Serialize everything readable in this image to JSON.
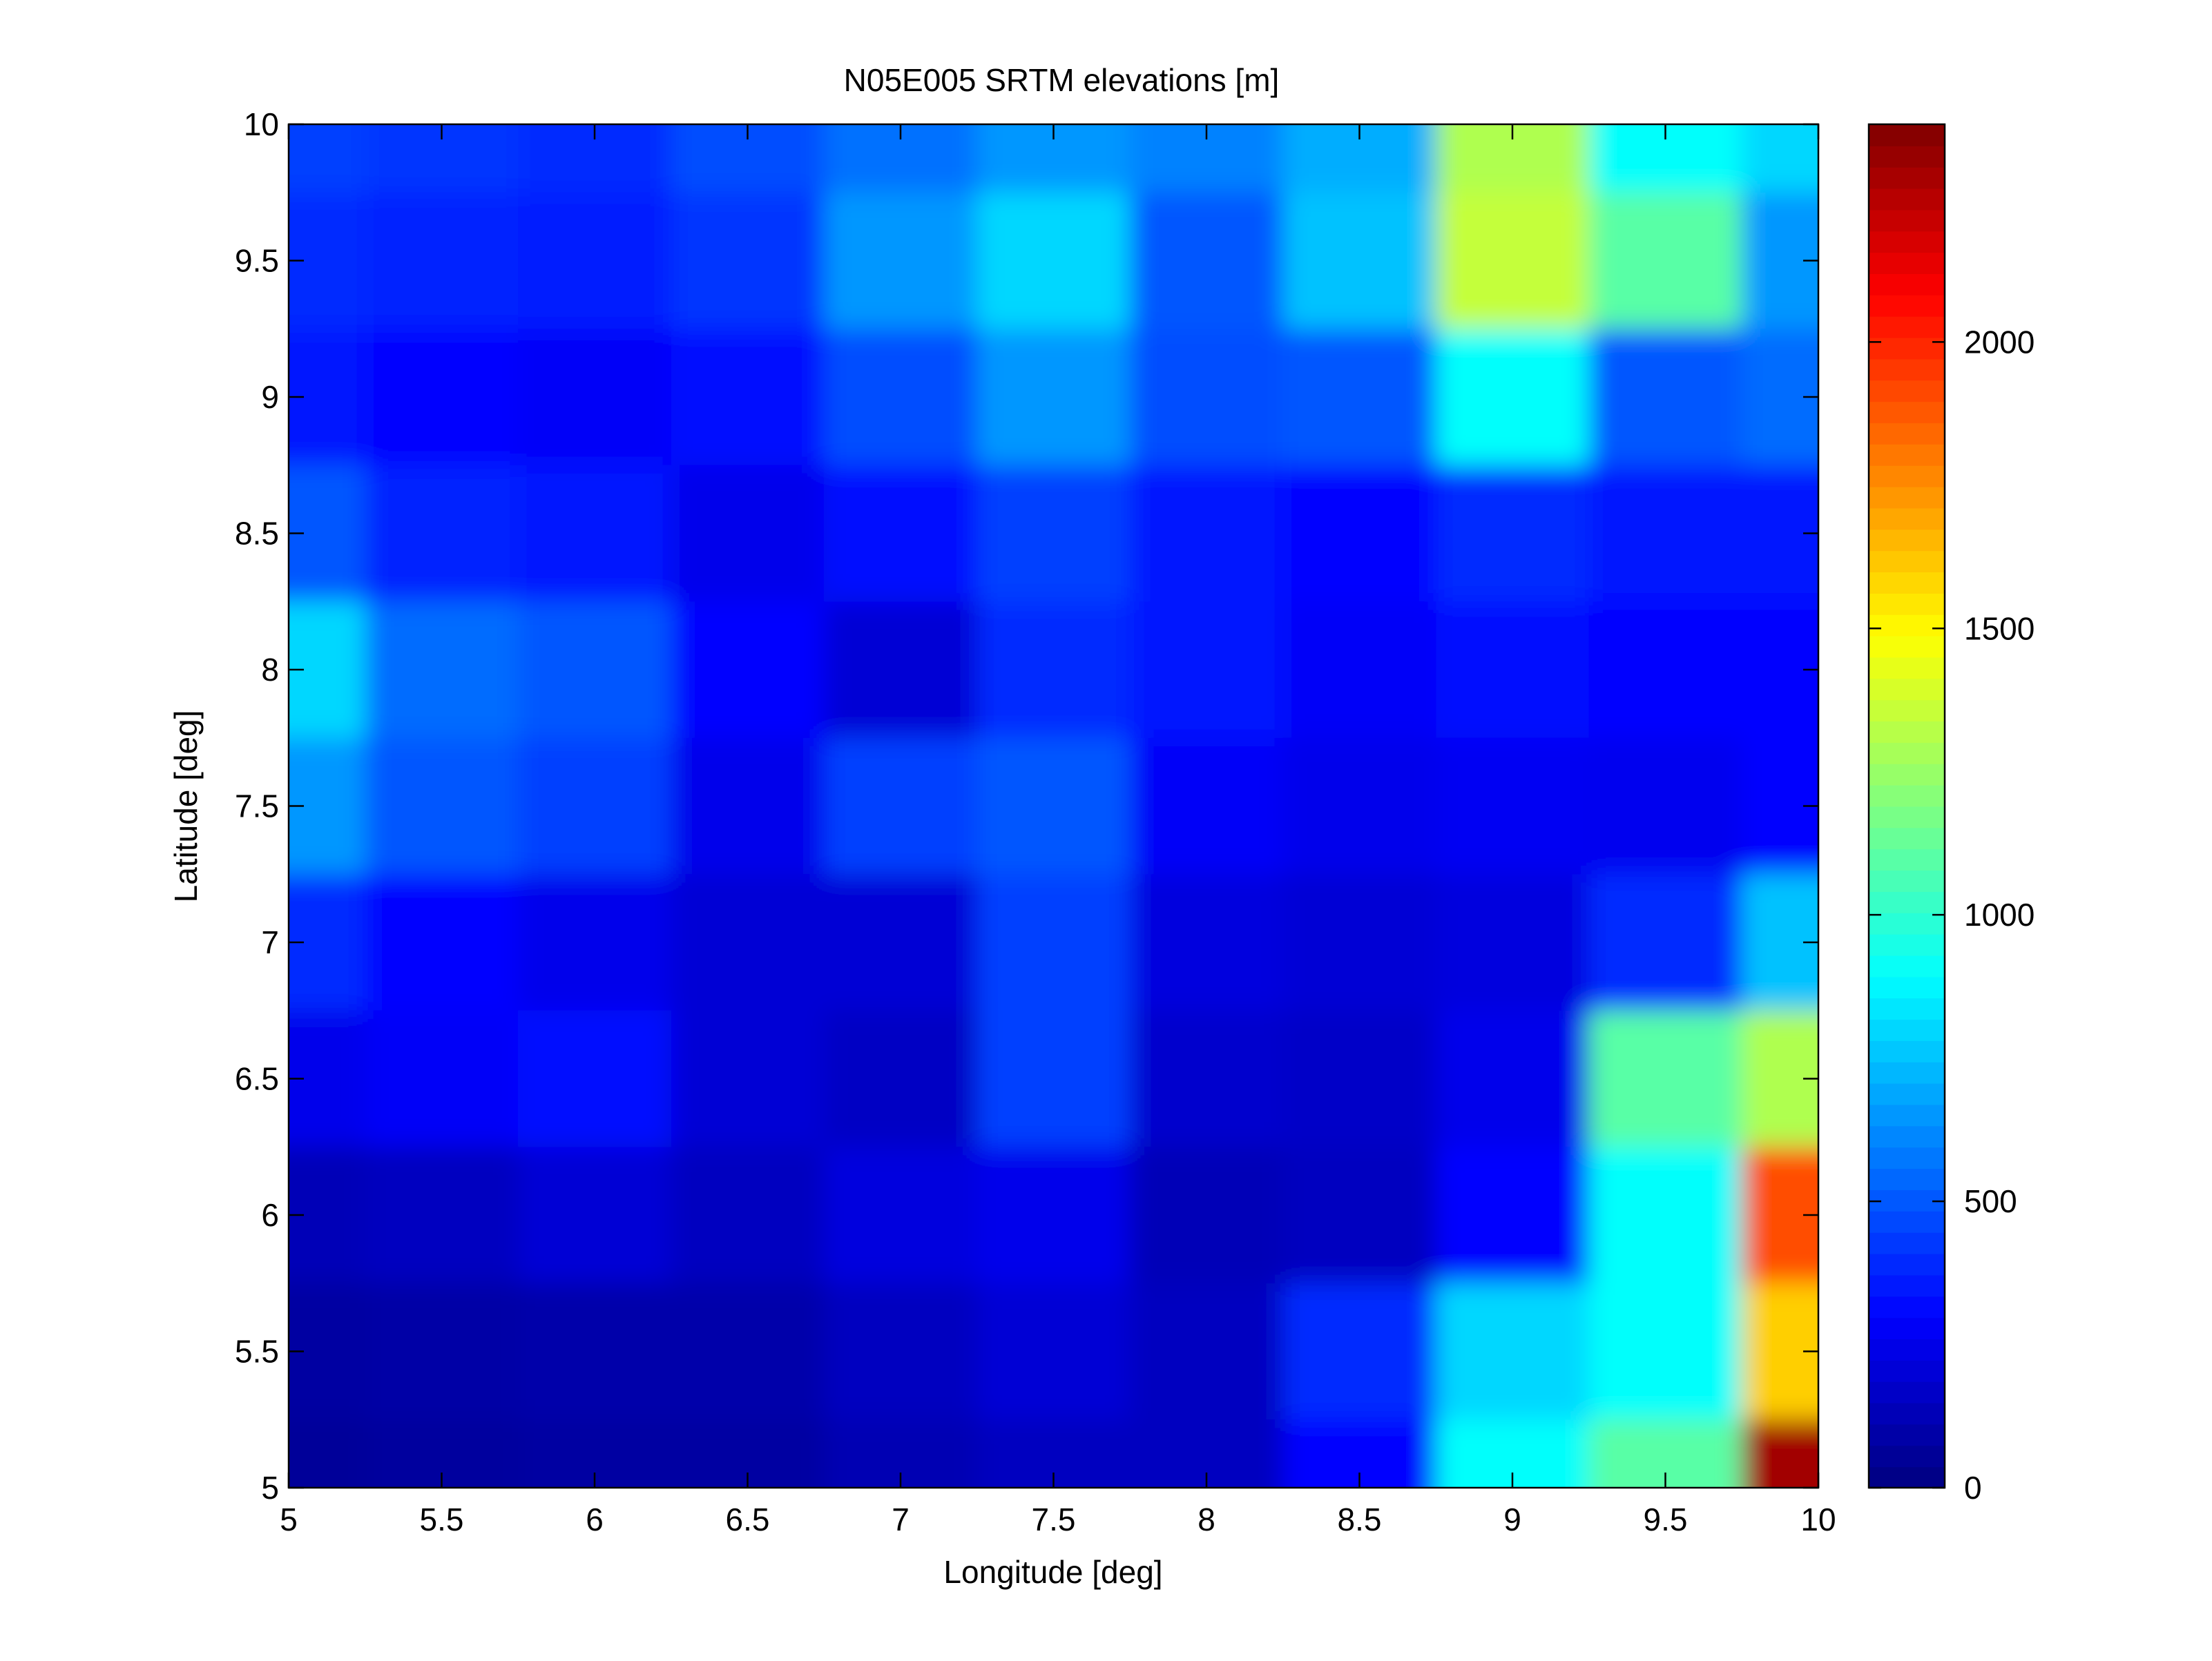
{
  "chart_data": {
    "type": "heatmap",
    "title": "N05E005 SRTM elevations [m]",
    "xlabel": "Longitude [deg]",
    "ylabel": "Latitude [deg]",
    "xlim": [
      5,
      10
    ],
    "ylim": [
      5,
      10
    ],
    "x_ticks": [
      5,
      5.5,
      6,
      6.5,
      7,
      7.5,
      8,
      8.5,
      9,
      9.5,
      10
    ],
    "y_ticks": [
      5,
      5.5,
      6,
      6.5,
      7,
      7.5,
      8,
      8.5,
      9,
      9.5,
      10
    ],
    "grid": false,
    "colormap": "jet",
    "colorbar": {
      "range": [
        0,
        2380
      ],
      "ticks": [
        0,
        500,
        1000,
        1500,
        2000
      ],
      "position": "right"
    },
    "elevation_m": {
      "lon": [
        5.0,
        5.5,
        6.0,
        6.5,
        7.0,
        7.5,
        8.0,
        8.5,
        9.0,
        9.5,
        10.0
      ],
      "lat": [
        10.0,
        9.5,
        9.0,
        8.5,
        8.0,
        7.5,
        7.0,
        6.5,
        6.0,
        5.5,
        5.0
      ],
      "values": [
        [
          450,
          420,
          400,
          480,
          560,
          650,
          600,
          700,
          1300,
          900,
          800
        ],
        [
          400,
          380,
          360,
          420,
          650,
          800,
          500,
          750,
          1350,
          1100,
          650
        ],
        [
          350,
          300,
          280,
          320,
          480,
          650,
          480,
          500,
          900,
          500,
          550
        ],
        [
          500,
          380,
          350,
          250,
          330,
          450,
          350,
          300,
          400,
          350,
          350
        ],
        [
          800,
          550,
          500,
          300,
          200,
          400,
          350,
          280,
          320,
          300,
          300
        ],
        [
          650,
          500,
          450,
          250,
          450,
          500,
          280,
          250,
          270,
          260,
          300
        ],
        [
          400,
          300,
          250,
          200,
          200,
          450,
          220,
          200,
          220,
          400,
          750
        ],
        [
          250,
          280,
          330,
          200,
          160,
          450,
          180,
          170,
          250,
          1100,
          1300
        ],
        [
          130,
          150,
          200,
          150,
          220,
          250,
          130,
          150,
          300,
          900,
          1900
        ],
        [
          80,
          90,
          100,
          100,
          150,
          200,
          150,
          400,
          800,
          900,
          1600
        ],
        [
          60,
          70,
          80,
          80,
          120,
          150,
          150,
          300,
          900,
          1100,
          2300
        ]
      ]
    }
  }
}
